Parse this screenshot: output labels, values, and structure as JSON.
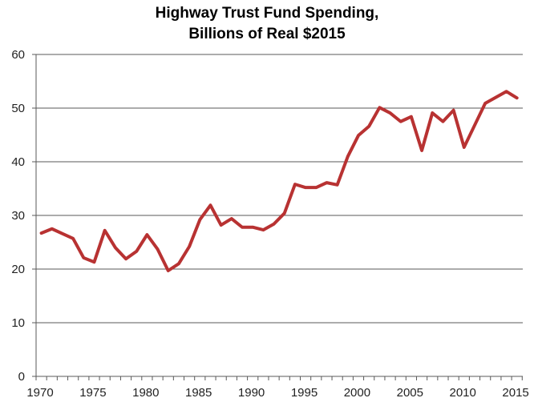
{
  "chart_data": {
    "type": "line",
    "title": [
      "Highway Trust Fund Spending,",
      "Billions of Real $2015"
    ],
    "xlabel": "",
    "ylabel": "",
    "ylim": [
      0,
      60
    ],
    "yticks": [
      0,
      10,
      20,
      30,
      40,
      50,
      60
    ],
    "xtick_labels": [
      "1970",
      "1975",
      "1980",
      "1985",
      "1990",
      "1995",
      "2000",
      "2005",
      "2010",
      "2015"
    ],
    "grid": "horizontal",
    "color": "#b83232",
    "x": [
      1970,
      1971,
      1972,
      1973,
      1974,
      1975,
      1976,
      1977,
      1978,
      1979,
      1980,
      1981,
      1982,
      1983,
      1984,
      1985,
      1986,
      1987,
      1988,
      1989,
      1990,
      1991,
      1992,
      1993,
      1994,
      1995,
      1996,
      1997,
      1998,
      1999,
      2000,
      2001,
      2002,
      2003,
      2004,
      2005,
      2006,
      2007,
      2008,
      2009,
      2010,
      2011,
      2012,
      2013,
      2014,
      2015
    ],
    "values": [
      26.7,
      27.5,
      26.6,
      25.7,
      22.1,
      21.3,
      27.2,
      24.0,
      21.9,
      23.3,
      26.4,
      23.7,
      19.7,
      21.0,
      24.2,
      29.2,
      31.9,
      28.2,
      29.4,
      27.8,
      27.8,
      27.3,
      28.4,
      30.4,
      35.8,
      35.2,
      35.2,
      36.1,
      35.7,
      41.0,
      44.9,
      46.6,
      50.1,
      49.1,
      47.5,
      48.4,
      42.1,
      49.1,
      47.5,
      49.6,
      42.7,
      46.8,
      50.9,
      52.0,
      53.1,
      51.9
    ]
  }
}
